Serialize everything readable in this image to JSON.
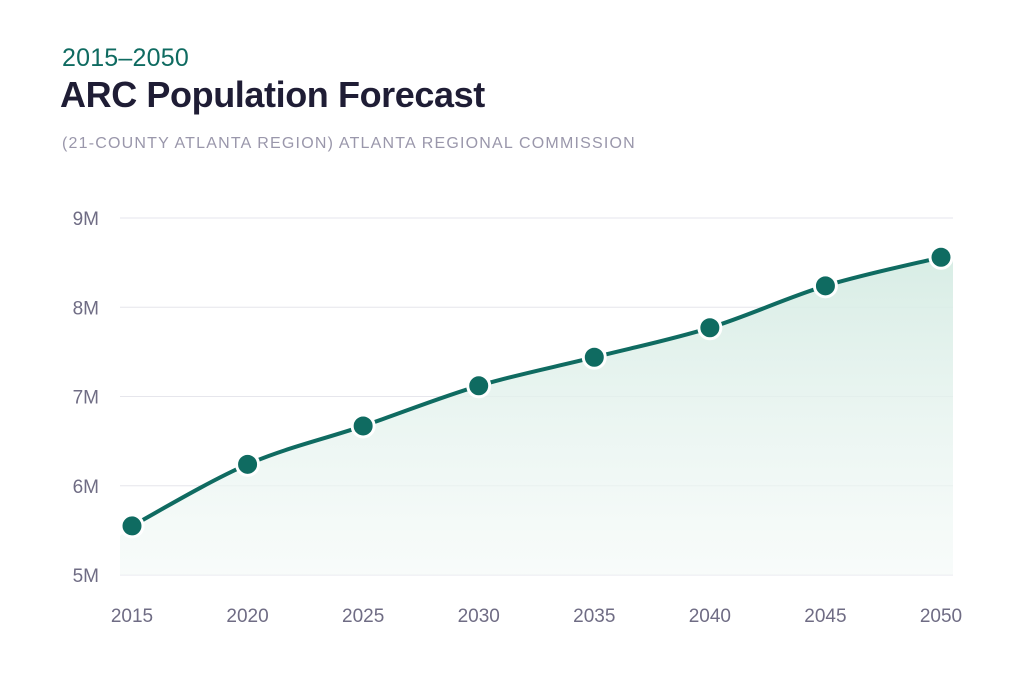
{
  "header": {
    "eyebrow": "2015–2050",
    "title": "ARC Population Forecast",
    "subtitle": "(21-COUNTY ATLANTA REGION) ATLANTA REGIONAL COMMISSION"
  },
  "colors": {
    "line": "#0f6b61",
    "area_top": "#dcefe8",
    "grid": "#e6e6ec"
  },
  "chart_data": {
    "type": "area",
    "title": "ARC Population Forecast",
    "subtitle": "(21-COUNTY ATLANTA REGION) ATLANTA REGIONAL COMMISSION",
    "x": [
      2015,
      2020,
      2025,
      2030,
      2035,
      2040,
      2045,
      2050
    ],
    "y": [
      5.55,
      6.24,
      6.67,
      7.12,
      7.44,
      7.77,
      8.24,
      8.56
    ],
    "y_unit": "M",
    "ylim": [
      5,
      9
    ],
    "yticks": [
      5,
      6,
      7,
      8,
      9
    ],
    "ytick_labels": [
      "5M",
      "6M",
      "7M",
      "8M",
      "9M"
    ],
    "xtick_labels": [
      "2015",
      "2020",
      "2025",
      "2030",
      "2035",
      "2040",
      "2045",
      "2050"
    ],
    "grid": true,
    "markers": true
  }
}
